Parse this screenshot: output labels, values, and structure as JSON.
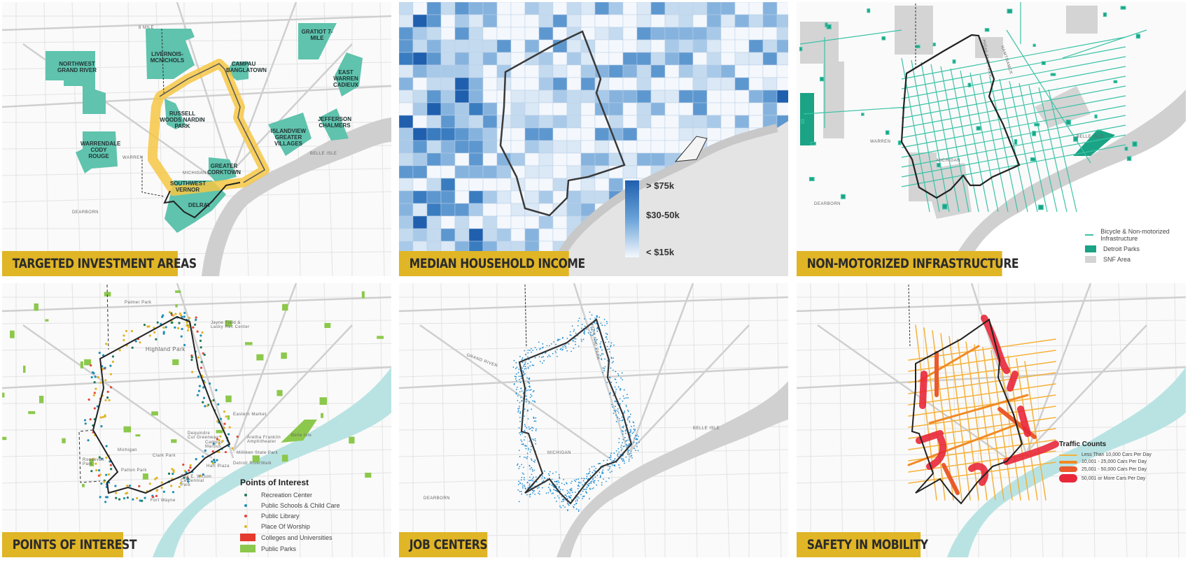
{
  "colors": {
    "title_bar": "#e0b526",
    "investment_area": "#5fc3ad",
    "boundary": "#333333",
    "corridor": "#f6c744",
    "river": "#d0d0d0",
    "water_teal": "#b9e3e3",
    "income_high": "#1f5fae",
    "income_low": "#f4f8fd",
    "bike": "#3cc2a6",
    "parks_teal": "#1aa384",
    "snf": "#d4d4d4",
    "job_dots": "#1e8ed4"
  },
  "panels": [
    {
      "title": "TARGETED INVESTMENT AREAS",
      "areas": [
        "NORTHWEST GRAND RIVER",
        "LIVERNOIS-MCNICHOLS",
        "CAMPAU BANGLATOWN",
        "GRATIOT 7-MILE",
        "EAST WARREN CADIEUX",
        "RUSSELL WOODS NARDIN PARK",
        "ISLANDVIEW GREATER VILLAGES",
        "JEFFERSON CHALMERS",
        "WARRENDALE CODY ROUGE",
        "GREATER CORKTOWN",
        "SOUTHWEST VERNOR",
        "DELRAY"
      ],
      "places": [
        "8 MILE",
        "WARREN",
        "MICHIGAN",
        "DEARBORN",
        "BELLE ISLE"
      ]
    },
    {
      "title": "MEDIAN HOUSEHOLD INCOME",
      "legend": {
        "high": "> $75k",
        "mid": "$30-50k",
        "low": "< $15k"
      }
    },
    {
      "title": "NON-MOTORIZED INFRASTRUCTURE",
      "legend": [
        {
          "label": "Bicycle & Non-motorized Infrastructure",
          "color": "#3cc2a6",
          "kind": "line"
        },
        {
          "label": "Detroit Parks",
          "color": "#1aa384",
          "kind": "box"
        },
        {
          "label": "SNF Area",
          "color": "#d4d4d4",
          "kind": "box"
        }
      ],
      "places": [
        "HIGHLAND PARK",
        "HAMTRAMCK",
        "WARREN",
        "MICHIGAN",
        "DEARBORN",
        "BELLE ISLE"
      ]
    },
    {
      "title": "POINTS OF INTEREST",
      "legend_title": "Points of Interest",
      "legend": [
        {
          "label": "Recreation Center",
          "color": "#1f7a5a",
          "kind": "dot"
        },
        {
          "label": "Public Schools & Child Care",
          "color": "#1f8fb5",
          "kind": "dot"
        },
        {
          "label": "Public Library",
          "color": "#e5453a",
          "kind": "dot"
        },
        {
          "label": "Place Of Worship",
          "color": "#e0b526",
          "kind": "dot"
        },
        {
          "label": "Colleges and Universities",
          "color": "#e53a2e",
          "kind": "box"
        },
        {
          "label": "Public Parks",
          "color": "#8cc84b",
          "kind": "box"
        }
      ],
      "places": [
        "Palmer Park",
        "Jayne Field & Lasky Rec Center",
        "Highland Park",
        "Eastern Market",
        "Dequindre Cut Greenway",
        "Aretha Franklin Amphitheater",
        "Belle Isle",
        "Campus Martius",
        "Milliken State Park",
        "Detroit RiverWalk",
        "Clark Park",
        "Hart Plaza",
        "Roosevelt Park",
        "Patton Park",
        "Roy E. Wilson Centennial Park",
        "Fort Wayne",
        "Michigan"
      ]
    },
    {
      "title": "JOB CENTERS",
      "places": [
        "GRAND RIVER",
        "MICHIGAN",
        "DEARBORN",
        "BELLE ISLE",
        "HIGHLAND PARK"
      ]
    },
    {
      "title": "SAFETY IN MOBILITY",
      "legend_title": "Traffic Counts",
      "legend": [
        {
          "label": "Less Than 10,000 Cars Per Day",
          "color": "#f6b13a",
          "weight": 2
        },
        {
          "label": "10,001 -  25,000 Cars Per Day",
          "color": "#f08a24",
          "weight": 4
        },
        {
          "label": "25,001 - 50,000 Cars Per Day",
          "color": "#ea5a2b",
          "weight": 8
        },
        {
          "label": "50,001 or More Cars Per Day",
          "color": "#e8283a",
          "weight": 12
        }
      ]
    }
  ]
}
